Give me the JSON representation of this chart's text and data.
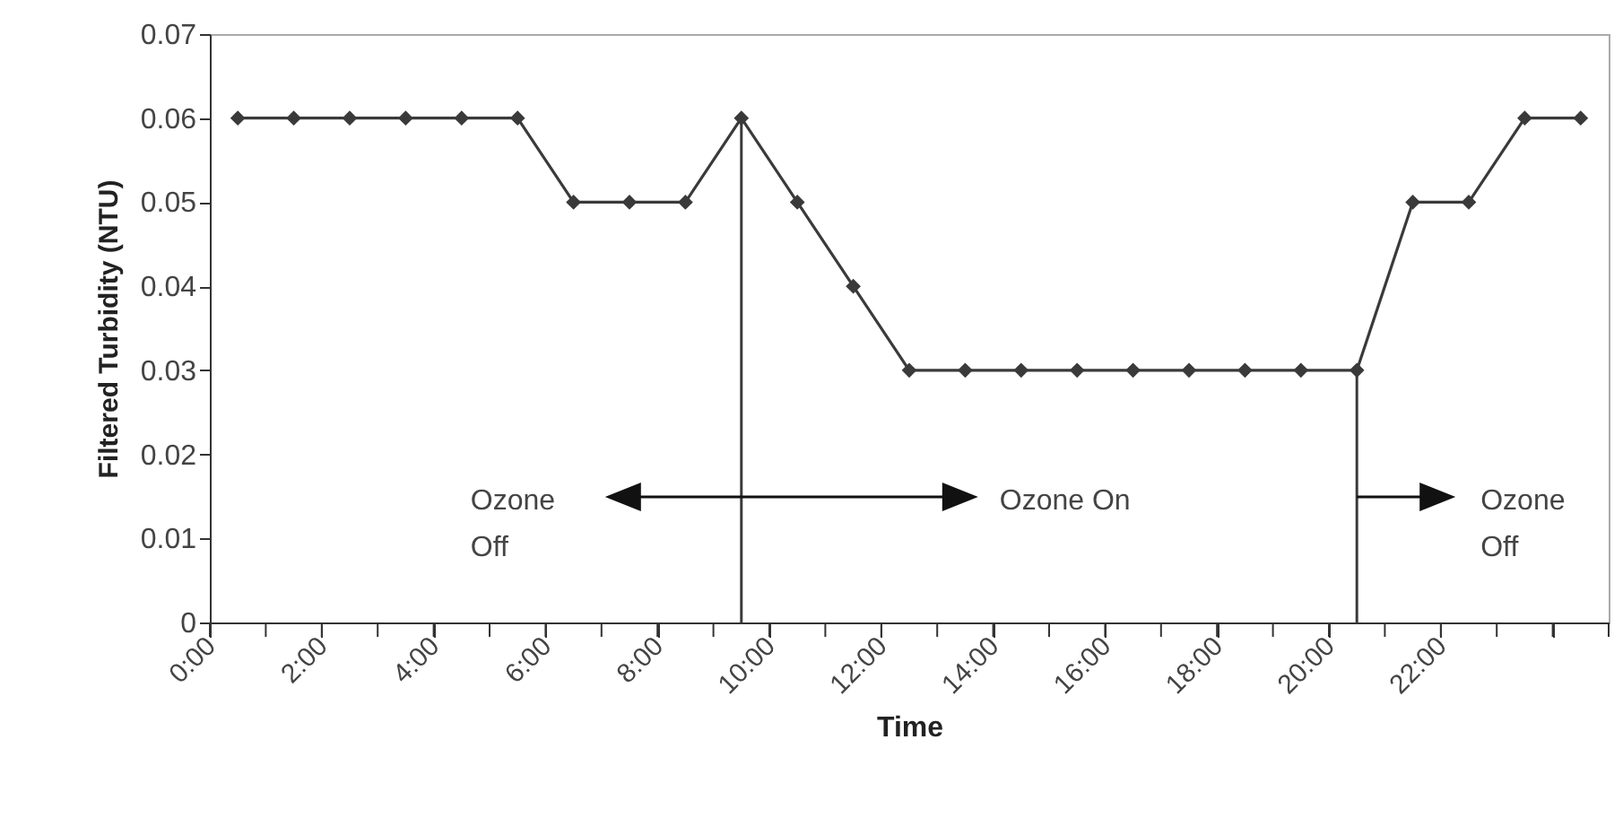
{
  "chart_data": {
    "type": "line",
    "xlabel": "Time",
    "ylabel": "Filtered Turbidity (NTU)",
    "x": [
      0.5,
      1.5,
      2.5,
      3.5,
      4.5,
      5.5,
      6.5,
      7.5,
      8.5,
      9.5,
      10.5,
      11.5,
      12.5,
      13.5,
      14.5,
      15.5,
      16.5,
      17.5,
      18.5,
      19.5,
      20.5,
      21.5,
      22.5,
      23.5,
      24.5
    ],
    "series": [
      {
        "color": "#3a3a3a",
        "values": [
          0.06,
          0.06,
          0.06,
          0.06,
          0.06,
          0.06,
          0.05,
          0.05,
          0.05,
          0.06,
          0.05,
          0.04,
          0.03,
          0.03,
          0.03,
          0.03,
          0.03,
          0.03,
          0.03,
          0.03,
          0.03,
          0.05,
          0.05,
          0.06,
          0.06
        ]
      }
    ],
    "xlim": [
      0,
      25
    ],
    "ylim": [
      0,
      0.07
    ],
    "xticks": [
      {
        "value": 0,
        "label": "0:00"
      },
      {
        "value": 1,
        "label": null
      },
      {
        "value": 2,
        "label": "2:00"
      },
      {
        "value": 3,
        "label": null
      },
      {
        "value": 4,
        "label": "4:00"
      },
      {
        "value": 5,
        "label": null
      },
      {
        "value": 6,
        "label": "6:00"
      },
      {
        "value": 7,
        "label": null
      },
      {
        "value": 8,
        "label": "8:00"
      },
      {
        "value": 9,
        "label": null
      },
      {
        "value": 10,
        "label": "10:00"
      },
      {
        "value": 11,
        "label": null
      },
      {
        "value": 12,
        "label": "12:00"
      },
      {
        "value": 13,
        "label": null
      },
      {
        "value": 14,
        "label": "14:00"
      },
      {
        "value": 15,
        "label": null
      },
      {
        "value": 16,
        "label": "16:00"
      },
      {
        "value": 17,
        "label": null
      },
      {
        "value": 18,
        "label": "18:00"
      },
      {
        "value": 19,
        "label": null
      },
      {
        "value": 20,
        "label": "20:00"
      },
      {
        "value": 21,
        "label": null
      },
      {
        "value": 22,
        "label": "22:00"
      },
      {
        "value": 23,
        "label": null
      },
      {
        "value": 24,
        "label": null
      },
      {
        "value": 25,
        "label": null
      }
    ],
    "yticks": [
      0,
      0.01,
      0.02,
      0.03,
      0.04,
      0.05,
      0.06,
      0.07
    ],
    "ref_lines": [
      {
        "axis": "x",
        "value": 9.5,
        "color": "#3a3a3a"
      },
      {
        "axis": "x",
        "value": 20.5,
        "color": "#3a3a3a"
      }
    ],
    "annotations": [
      "Ozone\nOff",
      "Ozone On",
      "Ozone\nOff"
    ],
    "marker": "diamond",
    "grid": false
  }
}
